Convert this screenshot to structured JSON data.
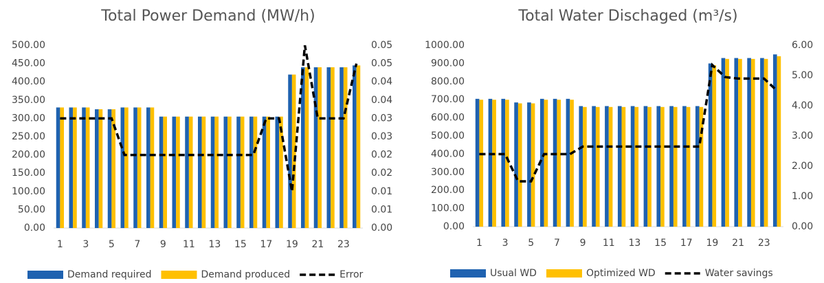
{
  "chart_data": [
    {
      "type": "bar",
      "title": "Total Power Demand (MW/h)",
      "categories": [
        "1",
        null,
        "3",
        null,
        "5",
        null,
        "7",
        null,
        "9",
        null,
        "11",
        null,
        "13",
        null,
        "15",
        null,
        "17",
        null,
        "19",
        null,
        "21",
        null,
        "23",
        null
      ],
      "series": [
        {
          "name": "Demand required",
          "color": "#1f62b0",
          "values": [
            330,
            330,
            330,
            325,
            325,
            330,
            330,
            330,
            305,
            305,
            305,
            305,
            305,
            305,
            305,
            305,
            305,
            305,
            420,
            440,
            440,
            440,
            440,
            445
          ]
        },
        {
          "name": "Demand produced",
          "color": "#ffc000",
          "values": [
            330,
            330,
            330,
            325,
            325,
            330,
            330,
            330,
            305,
            305,
            305,
            305,
            305,
            305,
            305,
            305,
            305,
            305,
            420,
            440,
            440,
            440,
            440,
            445
          ]
        },
        {
          "name": "Error",
          "color": "#000000",
          "type": "line",
          "axis": "y2",
          "values": [
            0.03,
            0.03,
            0.03,
            0.03,
            0.03,
            0.02,
            0.02,
            0.02,
            0.02,
            0.02,
            0.02,
            0.02,
            0.02,
            0.02,
            0.02,
            0.02,
            0.03,
            0.03,
            0.01,
            0.05,
            0.03,
            0.03,
            0.03,
            0.045
          ]
        }
      ],
      "ylim": [
        0,
        500
      ],
      "yticks": [
        {
          "value": 0,
          "label": "0.00"
        },
        {
          "value": 50,
          "label": "50.00"
        },
        {
          "value": 100,
          "label": "100.00"
        },
        {
          "value": 150,
          "label": "150.00"
        },
        {
          "value": 200,
          "label": "200.00"
        },
        {
          "value": 250,
          "label": "250.00"
        },
        {
          "value": 300,
          "label": "300.00"
        },
        {
          "value": 350,
          "label": "350.00"
        },
        {
          "value": 400,
          "label": "400.00"
        },
        {
          "value": 450,
          "label": "450.00"
        },
        {
          "value": 500,
          "label": "500.00"
        }
      ],
      "y2lim": [
        0,
        0.05
      ],
      "y2ticks": [
        {
          "value": 0,
          "label": "0.00"
        },
        {
          "value": 0.005,
          "label": "0.01"
        },
        {
          "value": 0.01,
          "label": "0.01"
        },
        {
          "value": 0.015,
          "label": "0.02"
        },
        {
          "value": 0.02,
          "label": "0.02"
        },
        {
          "value": 0.025,
          "label": "0.03"
        },
        {
          "value": 0.03,
          "label": "0.03"
        },
        {
          "value": 0.035,
          "label": "0.04"
        },
        {
          "value": 0.04,
          "label": "0.04"
        },
        {
          "value": 0.045,
          "label": "0.05"
        },
        {
          "value": 0.05,
          "label": "0.05"
        }
      ],
      "grid": false,
      "legend": "bottom"
    },
    {
      "type": "bar",
      "title": "Total Water Dischaged (m³/s)",
      "categories": [
        "1",
        null,
        "3",
        null,
        "5",
        null,
        "7",
        null,
        "9",
        null,
        "11",
        null,
        "13",
        null,
        "15",
        null,
        "17",
        null,
        "19",
        null,
        "21",
        null,
        "23",
        null
      ],
      "series": [
        {
          "name": "Usual WD",
          "color": "#1f62b0",
          "values": [
            705,
            705,
            705,
            685,
            685,
            705,
            705,
            705,
            665,
            665,
            665,
            665,
            665,
            665,
            665,
            665,
            665,
            665,
            900,
            930,
            930,
            930,
            930,
            950
          ]
        },
        {
          "name": "Optimized WD",
          "color": "#ffc000",
          "values": [
            700,
            700,
            700,
            680,
            680,
            700,
            700,
            700,
            660,
            660,
            660,
            660,
            660,
            660,
            660,
            660,
            660,
            660,
            890,
            925,
            925,
            925,
            925,
            940
          ]
        },
        {
          "name": "Water savings",
          "color": "#000000",
          "type": "line",
          "axis": "y2",
          "values": [
            2.4,
            2.4,
            2.4,
            1.5,
            1.5,
            2.4,
            2.4,
            2.4,
            2.65,
            2.65,
            2.65,
            2.65,
            2.65,
            2.65,
            2.65,
            2.65,
            2.65,
            2.65,
            5.35,
            4.95,
            4.9,
            4.9,
            4.9,
            4.5
          ]
        }
      ],
      "ylim": [
        0,
        1000
      ],
      "yticks": [
        {
          "value": 0,
          "label": "0.00"
        },
        {
          "value": 100,
          "label": "100.00"
        },
        {
          "value": 200,
          "label": "200.00"
        },
        {
          "value": 300,
          "label": "300.00"
        },
        {
          "value": 400,
          "label": "400.00"
        },
        {
          "value": 500,
          "label": "500.00"
        },
        {
          "value": 600,
          "label": "600.00"
        },
        {
          "value": 700,
          "label": "700.00"
        },
        {
          "value": 800,
          "label": "800.00"
        },
        {
          "value": 900,
          "label": "900.00"
        },
        {
          "value": 1000,
          "label": "1000.00"
        }
      ],
      "y2lim": [
        0,
        6
      ],
      "y2ticks": [
        {
          "value": 0,
          "label": "0.00"
        },
        {
          "value": 1,
          "label": "1.00"
        },
        {
          "value": 2,
          "label": "2.00"
        },
        {
          "value": 3,
          "label": "3.00"
        },
        {
          "value": 4,
          "label": "4.00"
        },
        {
          "value": 5,
          "label": "5.00"
        },
        {
          "value": 6,
          "label": "6.00"
        }
      ],
      "grid": false,
      "legend": "bottom"
    }
  ]
}
